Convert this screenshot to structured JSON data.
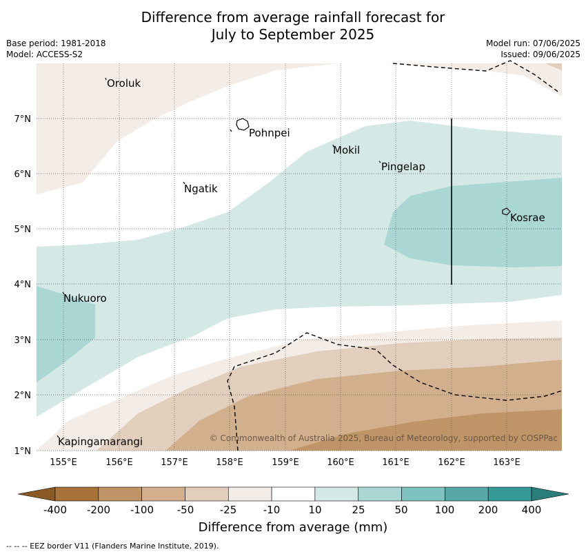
{
  "title": {
    "line1": "Difference from average rainfall forecast for",
    "line2": "July to September 2025"
  },
  "meta": {
    "base_period": "Base period: 1981-2018",
    "model": "Model: ACCESS-S2",
    "model_run": "Model run: 07/06/2025",
    "issued": "Issued: 09/06/2025"
  },
  "map": {
    "lon_ticks": [
      "155°E",
      "156°E",
      "157°E",
      "158°E",
      "159°E",
      "160°E",
      "161°E",
      "162°E",
      "163°E"
    ],
    "lat_ticks": [
      "1°N",
      "2°N",
      "3°N",
      "4°N",
      "5°N",
      "6°N",
      "7°N"
    ],
    "places": [
      {
        "name": "Oroluk"
      },
      {
        "name": "Pohnpei"
      },
      {
        "name": "Mokil"
      },
      {
        "name": "Pingelap"
      },
      {
        "name": "Ngatik"
      },
      {
        "name": "Kosrae"
      },
      {
        "name": "Nukuoro"
      },
      {
        "name": "Kapingamarangi"
      }
    ],
    "copyright": "© Commonwealth of Australia 2025, Bureau of Meteorology, supported by COSPPac"
  },
  "colorbar": {
    "labels": [
      "-400",
      "-200",
      "-100",
      "-50",
      "-25",
      "-10",
      "10",
      "25",
      "50",
      "100",
      "200",
      "400"
    ],
    "colors": [
      "#a8723a",
      "#bf9466",
      "#d2b08e",
      "#e2cebd",
      "#f4ece6",
      "#ffffff",
      "#d4e8e6",
      "#aad6d4",
      "#80c2bf",
      "#57a8a6",
      "#359a98"
    ],
    "low_color": "#8a5a26",
    "high_color": "#2a7d7a",
    "title": "Difference from average (mm)"
  },
  "footnote": "-- -- -- EEZ border V11 (Flanders Marine Institute, 2019)."
}
